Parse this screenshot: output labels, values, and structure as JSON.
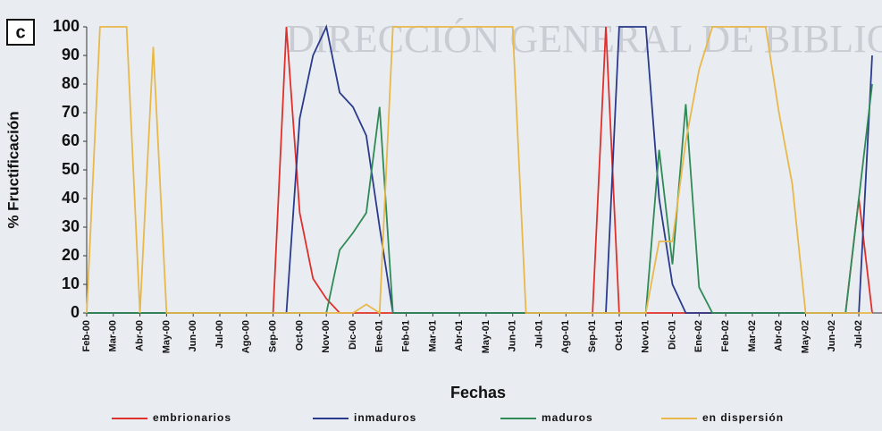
{
  "chart_data": {
    "type": "line",
    "panel_label": "c",
    "watermark": "DIRECCIÓN GENERAL DE BIBLIOTECAS",
    "y_label": "% Fructificación",
    "x_label": "Fechas",
    "categories": [
      "Feb-00",
      null,
      "Mar-00",
      null,
      "Abr-00",
      null,
      "May-00",
      null,
      "Jun-00",
      null,
      "Jul-00",
      null,
      "Ago-00",
      null,
      "Sep-00",
      null,
      "Oct-00",
      null,
      "Nov-00",
      null,
      "Dic-00",
      null,
      "Ene-01",
      null,
      "Feb-01",
      null,
      "Mar-01",
      null,
      "Abr-01",
      null,
      "May-01",
      null,
      "Jun-01",
      null,
      "Jul-01",
      null,
      "Ago-01",
      null,
      "Sep-01",
      null,
      "Oct-01",
      null,
      "Nov-01",
      null,
      "Dic-01",
      null,
      "Ene-02",
      null,
      "Feb-02",
      null,
      "Mar-02",
      null,
      "Abr-02",
      null,
      "May-02",
      null,
      "Jun-02",
      null,
      "Jul-02",
      null
    ],
    "ylim": [
      0,
      100
    ],
    "yticks": [
      0,
      10,
      20,
      30,
      40,
      50,
      60,
      70,
      80,
      90,
      100
    ],
    "series": [
      {
        "name": "embrionarios",
        "color": "#e0302c",
        "values": [
          0,
          0,
          0,
          0,
          0,
          0,
          0,
          0,
          0,
          0,
          0,
          0,
          0,
          0,
          0,
          100,
          35,
          12,
          5,
          0,
          0,
          0,
          0,
          0,
          0,
          0,
          0,
          0,
          0,
          0,
          0,
          0,
          0,
          0,
          0,
          0,
          0,
          0,
          0,
          100,
          0,
          0,
          0,
          0,
          0,
          0,
          0,
          0,
          0,
          0,
          0,
          0,
          0,
          0,
          0,
          0,
          0,
          0,
          40,
          0
        ]
      },
      {
        "name": "inmaduros",
        "color": "#2a3a8c",
        "values": [
          0,
          0,
          0,
          0,
          0,
          0,
          0,
          0,
          0,
          0,
          0,
          0,
          0,
          0,
          0,
          0,
          68,
          90,
          100,
          77,
          72,
          62,
          30,
          0,
          0,
          0,
          0,
          0,
          0,
          0,
          0,
          0,
          0,
          0,
          0,
          0,
          0,
          0,
          0,
          0,
          100,
          100,
          100,
          40,
          10,
          0,
          0,
          0,
          0,
          0,
          0,
          0,
          0,
          0,
          0,
          0,
          0,
          0,
          0,
          90
        ]
      },
      {
        "name": "maduros",
        "color": "#2f8a55",
        "values": [
          0,
          0,
          0,
          0,
          0,
          0,
          0,
          0,
          0,
          0,
          0,
          0,
          0,
          0,
          0,
          0,
          0,
          0,
          0,
          22,
          28,
          35,
          72,
          0,
          0,
          0,
          0,
          0,
          0,
          0,
          0,
          0,
          0,
          0,
          0,
          0,
          0,
          0,
          0,
          0,
          0,
          0,
          0,
          57,
          17,
          73,
          9,
          0,
          0,
          0,
          0,
          0,
          0,
          0,
          0,
          0,
          0,
          0,
          40,
          80
        ]
      },
      {
        "name": "en dispersión",
        "color": "#e8b84a",
        "values": [
          0,
          100,
          100,
          100,
          0,
          93,
          0,
          0,
          0,
          0,
          0,
          0,
          0,
          0,
          0,
          0,
          0,
          0,
          0,
          0,
          0,
          3,
          0,
          100,
          100,
          100,
          100,
          100,
          100,
          100,
          100,
          100,
          100,
          0,
          0,
          0,
          0,
          0,
          0,
          0,
          0,
          0,
          0,
          25,
          25,
          60,
          85,
          100,
          100,
          100,
          100,
          100,
          70,
          45,
          0,
          0,
          0,
          0,
          0,
          0
        ]
      }
    ]
  }
}
